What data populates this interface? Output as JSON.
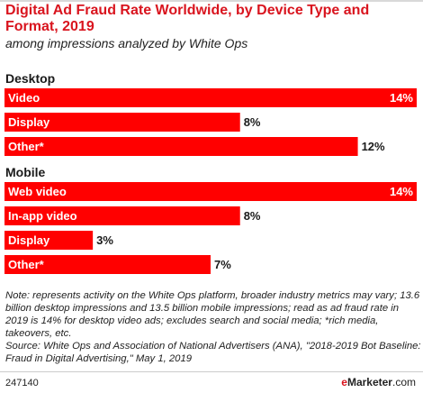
{
  "header": {
    "title": "Digital Ad Fraud Rate Worldwide, by Device Type and Format, 2019",
    "subtitle": "among impressions analyzed by White Ops"
  },
  "chart_data": {
    "type": "bar",
    "orientation": "horizontal",
    "title": "Digital Ad Fraud Rate Worldwide, by Device Type and Format, 2019",
    "subtitle": "among impressions analyzed by White Ops",
    "xlim": [
      0,
      14
    ],
    "unit": "%",
    "bar_color": "#ff0000",
    "groups": [
      {
        "name": "Desktop",
        "categories": [
          "Video",
          "Display",
          "Other*"
        ],
        "values": [
          14,
          8,
          12
        ],
        "labels": [
          "14%",
          "8%",
          "12%"
        ]
      },
      {
        "name": "Mobile",
        "categories": [
          "Web video",
          "In-app video",
          "Display",
          "Other*"
        ],
        "values": [
          14,
          8,
          3,
          7
        ],
        "labels": [
          "14%",
          "8%",
          "3%",
          "7%"
        ]
      }
    ]
  },
  "footer": {
    "note": "Note: represents activity on the White Ops platform, broader industry metrics may vary; 13.6 billion desktop impressions and 13.5 billion mobile impressions; read as ad fraud rate in 2019 is 14% for desktop video ads; excludes search and social media; *rich media, takeovers, etc.",
    "source": "Source: White Ops and Association of National Advertisers (ANA), \"2018-2019 Bot Baseline: Fraud in Digital Advertising,\" May 1, 2019",
    "chart_id": "247140",
    "brand_e": "e",
    "brand_name": "Marketer",
    "brand_suffix": ".com"
  }
}
